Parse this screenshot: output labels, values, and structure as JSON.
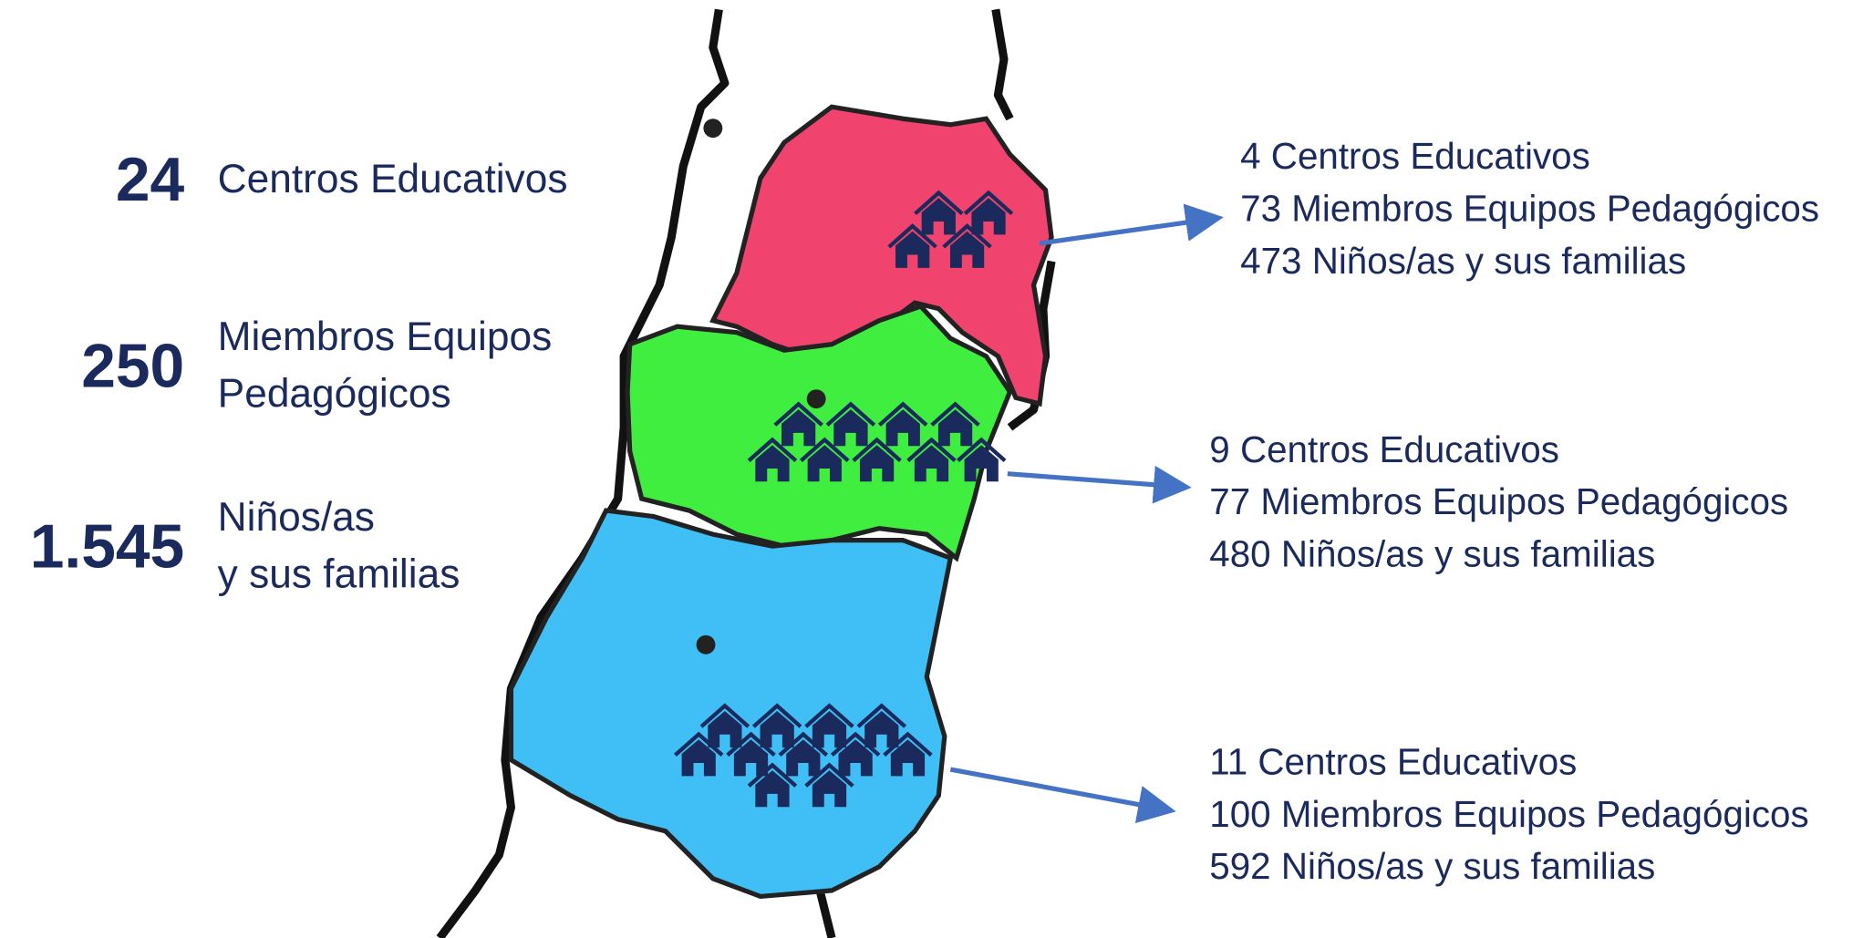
{
  "totals": [
    {
      "number": "24",
      "label": [
        "Centros Educativos"
      ]
    },
    {
      "number": "250",
      "label": [
        "Miembros Equipos",
        "Pedagógicos"
      ]
    },
    {
      "number": "1.545",
      "label": [
        "Niños/as",
        "y sus familias"
      ]
    }
  ],
  "regions": [
    {
      "color": "#f0436e",
      "lines": [
        "4 Centros Educativos",
        "73 Miembros Equipos Pedagógicos",
        "473 Niños/as y sus familias"
      ]
    },
    {
      "color": "#3fee3f",
      "lines": [
        "9 Centros Educativos",
        "77 Miembros Equipos Pedagógicos",
        "480 Niños/as y sus familias"
      ]
    },
    {
      "color": "#3fbff5",
      "lines": [
        "11 Centros Educativos",
        "100 Miembros Equipos Pedagógicos",
        "592 Niños/as y sus familias"
      ]
    }
  ]
}
